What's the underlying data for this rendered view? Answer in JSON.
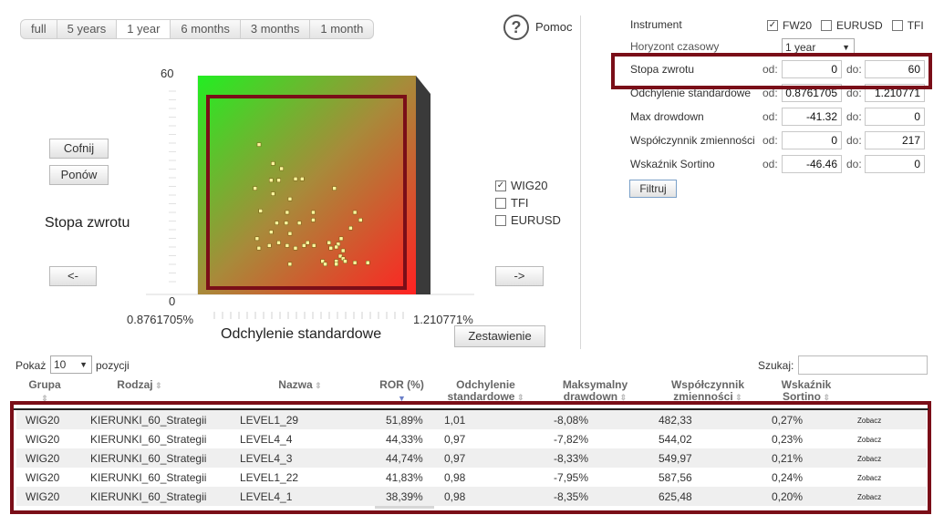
{
  "periods": [
    "full",
    "5 years",
    "1 year",
    "6 months",
    "3 months",
    "1 month"
  ],
  "active_period": "1 year",
  "help_label": "Pomoc",
  "undo_label": "Cofnij",
  "redo_label": "Ponów",
  "prev_label": "<-",
  "next_label": "->",
  "summary_label": "Zestawienie",
  "y_axis_title": "Stopa zwrotu",
  "x_axis_title": "Odchylenie standardowe",
  "y_max": "60",
  "y_min": "0",
  "x_min": "0.8761705%",
  "x_max": "1.210771%",
  "series_toggles": [
    {
      "label": "WIG20",
      "checked": true
    },
    {
      "label": "TFI",
      "checked": false
    },
    {
      "label": "EURUSD",
      "checked": false
    }
  ],
  "filters": {
    "instrument_label": "Instrument",
    "instruments": [
      {
        "label": "FW20",
        "checked": true
      },
      {
        "label": "EURUSD",
        "checked": false
      },
      {
        "label": "TFI",
        "checked": false
      }
    ],
    "horizon_label": "Horyzont czasowy",
    "horizon_value": "1 year",
    "from_label": "od:",
    "to_label": "do:",
    "rows": [
      {
        "label": "Stopa zwrotu",
        "from": "0",
        "to": "60"
      },
      {
        "label": "Odchylenie standardowe",
        "from": "0.8761705",
        "to": "1.210771"
      },
      {
        "label": "Max drowdown",
        "from": "-41.32",
        "to": "0"
      },
      {
        "label": "Współczynnik zmienności",
        "from": "0",
        "to": "217"
      },
      {
        "label": "Wskaźnik Sortino",
        "from": "-46.46",
        "to": "0"
      }
    ],
    "filter_button": "Filtruj"
  },
  "table": {
    "show_label": "Pokaż",
    "page_size": "10",
    "positions_label": "pozycji",
    "search_label": "Szukaj:",
    "search_value": "",
    "headers": [
      "Grupa",
      "Rodzaj",
      "Nazwa",
      "ROR (%)",
      "Odchylenie standardowe",
      "Maksymalny drawdown",
      "Współczynnik zmienności",
      "Wskaźnik Sortino"
    ],
    "view_link": "Zobacz",
    "rows": [
      {
        "grupa": "WIG20",
        "rodzaj": "KIERUNKI_60_Strategii",
        "nazwa": "LEVEL1_29",
        "ror": "51,89%",
        "std": "1,01",
        "dd": "-8,08%",
        "wz": "482,33",
        "sortino": "0,27%"
      },
      {
        "grupa": "WIG20",
        "rodzaj": "KIERUNKI_60_Strategii",
        "nazwa": "LEVEL4_4",
        "ror": "44,33%",
        "std": "0,97",
        "dd": "-7,82%",
        "wz": "544,02",
        "sortino": "0,23%"
      },
      {
        "grupa": "WIG20",
        "rodzaj": "KIERUNKI_60_Strategii",
        "nazwa": "LEVEL4_3",
        "ror": "44,74%",
        "std": "0,97",
        "dd": "-8,33%",
        "wz": "549,97",
        "sortino": "0,21%"
      },
      {
        "grupa": "WIG20",
        "rodzaj": "KIERUNKI_60_Strategii",
        "nazwa": "LEVEL1_22",
        "ror": "41,83%",
        "std": "0,98",
        "dd": "-7,95%",
        "wz": "587,56",
        "sortino": "0,24%"
      },
      {
        "grupa": "WIG20",
        "rodzaj": "KIERUNKI_60_Strategii",
        "nazwa": "LEVEL4_1",
        "ror": "38,39%",
        "std": "0,98",
        "dd": "-8,35%",
        "wz": "625,48",
        "sortino": "0,20%"
      }
    ]
  },
  "colors": {
    "frame": "#7a0e18",
    "marker": "#fff59d",
    "accent_top_left": "#22ee22",
    "accent_bottom_right": "#ff2222"
  },
  "scatter_points": [
    [
      0.97,
      41.1
    ],
    [
      0.9914,
      35.9
    ],
    [
      1.0045,
      34.5
    ],
    [
      1.026,
      31.7
    ],
    [
      1.0361,
      31.7
    ],
    [
      0.9885,
      31.3
    ],
    [
      1.0002,
      31.3
    ],
    [
      0.9639,
      29.1
    ],
    [
      1.0857,
      29.1
    ],
    [
      0.9914,
      27.6
    ],
    [
      1.0175,
      26.2
    ],
    [
      0.9724,
      22.9
    ],
    [
      1.0132,
      22.5
    ],
    [
      1.0532,
      22.5
    ],
    [
      1.1171,
      22.5
    ],
    [
      1.0532,
      20.4
    ],
    [
      1.1257,
      20.4
    ],
    [
      0.9972,
      19.6
    ],
    [
      1.0118,
      19.6
    ],
    [
      1.0318,
      19.6
    ],
    [
      1.1106,
      18.2
    ],
    [
      0.9885,
      17.1
    ],
    [
      1.0175,
      16.7
    ],
    [
      0.967,
      15.3
    ],
    [
      1.096,
      15.3
    ],
    [
      1.0001,
      14.2
    ],
    [
      1.0445,
      14.2
    ],
    [
      1.0774,
      14.2
    ],
    [
      1.0916,
      13.8
    ],
    [
      0.9857,
      13.4
    ],
    [
      1.0132,
      13.4
    ],
    [
      1.0389,
      13.4
    ],
    [
      1.0542,
      13.4
    ],
    [
      1.0885,
      13.0
    ],
    [
      0.9698,
      12.7
    ],
    [
      1.0259,
      12.7
    ],
    [
      1.0802,
      12.7
    ],
    [
      1.099,
      12.0
    ],
    [
      1.0947,
      10.5
    ],
    [
      1.099,
      9.8
    ],
    [
      1.0676,
      9.1
    ],
    [
      1.0885,
      9.1
    ],
    [
      1.1022,
      9.1
    ],
    [
      1.1171,
      8.7
    ],
    [
      1.1369,
      8.7
    ],
    [
      1.0174,
      8.3
    ],
    [
      1.0715,
      8.3
    ],
    [
      1.0885,
      8.3
    ]
  ]
}
